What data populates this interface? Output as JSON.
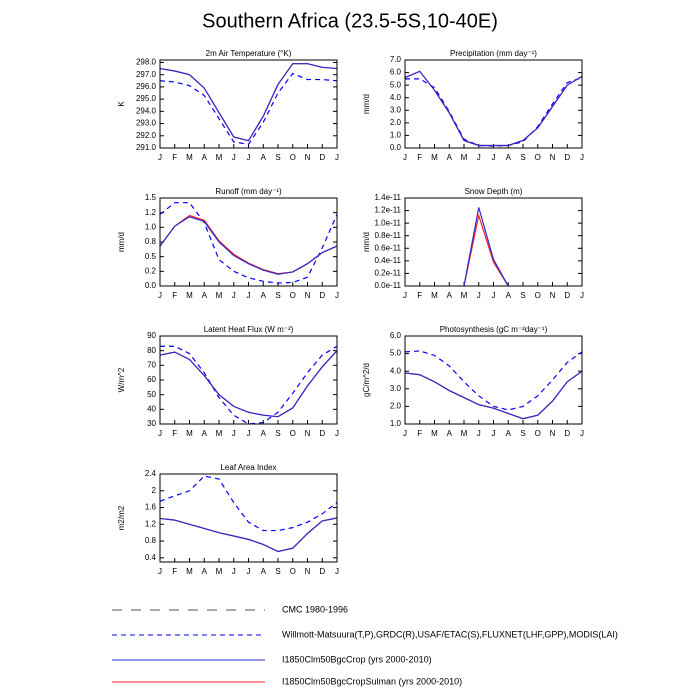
{
  "title": "Southern Africa (23.5-5S,10-40E)",
  "legend": [
    {
      "name": "CMC 1980-1996",
      "color": "#555555",
      "linestyle": "longdash"
    },
    {
      "name": "Willmott-Matsuura(T,P),GRDC(R),USAF/ETAC(S),FLUXNET(LHF,GPP),MODIS(LAI)",
      "color": "#0000ff",
      "linestyle": "dashed"
    },
    {
      "name": "I1850Clm50BgcCrop (yrs 2000-2010)",
      "color": "#2a2ad0",
      "linestyle": "solid"
    },
    {
      "name": "I1850Clm50BgcCropSulman (yrs 2000-2010)",
      "color": "#ff2020",
      "linestyle": "solid"
    }
  ],
  "chart_data": [
    {
      "type": "line",
      "title": "2m Air Temperature (°K)",
      "ylabel": "K",
      "categories": [
        "J",
        "F",
        "M",
        "A",
        "M",
        "J",
        "J",
        "A",
        "S",
        "O",
        "N",
        "D",
        "J"
      ],
      "ylim": [
        291,
        298.2
      ],
      "yticks": [
        {
          "value": 291,
          "label": "291.0"
        },
        {
          "value": 292,
          "label": "292.0"
        },
        {
          "value": 293,
          "label": "293.0"
        },
        {
          "value": 294,
          "label": "294.0"
        },
        {
          "value": 295,
          "label": "295.0"
        },
        {
          "value": 296,
          "label": "296.0"
        },
        {
          "value": 297,
          "label": "297.0"
        },
        {
          "value": 298,
          "label": "298.0"
        }
      ],
      "series": [
        {
          "name": "Willmott-Matsuura(T,P),GRDC(R),USAF/ETAC(S),FLUXNET(LHF,GPP),MODIS(LAI)",
          "values": [
            296.5,
            296.4,
            296.1,
            295.3,
            293.4,
            291.5,
            291.3,
            293.1,
            295.5,
            297.1,
            296.6,
            296.6,
            296.5
          ]
        },
        {
          "name": "I1850Clm50BgcCropSulman (yrs 2000-2010)",
          "values": [
            297.5,
            297.3,
            297.0,
            295.9,
            293.9,
            291.9,
            291.6,
            293.6,
            296.2,
            297.9,
            297.9,
            297.6,
            297.5
          ]
        },
        {
          "name": "I1850Clm50BgcCrop (yrs 2000-2010)",
          "values": [
            297.5,
            297.3,
            297.0,
            295.9,
            293.9,
            291.9,
            291.6,
            293.6,
            296.2,
            297.9,
            297.9,
            297.6,
            297.5
          ]
        }
      ]
    },
    {
      "type": "line",
      "title": "Precipitation (mm day⁻¹)",
      "ylabel": "mm/d",
      "categories": [
        "J",
        "F",
        "M",
        "A",
        "M",
        "J",
        "J",
        "A",
        "S",
        "O",
        "N",
        "D",
        "J"
      ],
      "ylim": [
        0,
        7
      ],
      "yticks": [
        {
          "value": 0,
          "label": "0.0"
        },
        {
          "value": 1,
          "label": "1.0"
        },
        {
          "value": 2,
          "label": "2.0"
        },
        {
          "value": 3,
          "label": "3.0"
        },
        {
          "value": 4,
          "label": "4.0"
        },
        {
          "value": 5,
          "label": "5.0"
        },
        {
          "value": 6,
          "label": "6.0"
        },
        {
          "value": 7,
          "label": "7.0"
        }
      ],
      "series": [
        {
          "name": "Willmott-Matsuura(T,P),GRDC(R),USAF/ETAC(S),FLUXNET(LHF,GPP),MODIS(LAI)",
          "values": [
            5.5,
            5.5,
            4.8,
            2.9,
            0.7,
            0.2,
            0.15,
            0.2,
            0.5,
            1.7,
            3.5,
            5.2,
            5.6
          ]
        },
        {
          "name": "I1850Clm50BgcCropSulman (yrs 2000-2010)",
          "values": [
            5.6,
            6.1,
            4.6,
            2.8,
            0.6,
            0.2,
            0.2,
            0.2,
            0.6,
            1.6,
            3.3,
            5.0,
            5.7
          ]
        },
        {
          "name": "I1850Clm50BgcCrop (yrs 2000-2010)",
          "values": [
            5.6,
            6.1,
            4.6,
            2.8,
            0.6,
            0.2,
            0.2,
            0.2,
            0.6,
            1.6,
            3.3,
            5.0,
            5.7
          ]
        }
      ]
    },
    {
      "type": "line",
      "title": "Runoff (mm day⁻¹)",
      "ylabel": "mm/d",
      "categories": [
        "J",
        "F",
        "M",
        "A",
        "M",
        "J",
        "J",
        "A",
        "S",
        "O",
        "N",
        "D",
        "J"
      ],
      "ylim": [
        0,
        1.5
      ],
      "yticks": [
        {
          "value": 0,
          "label": "0.0"
        },
        {
          "value": 0.25,
          "label": "0.2"
        },
        {
          "value": 0.5,
          "label": "0.5"
        },
        {
          "value": 0.75,
          "label": "0.8"
        },
        {
          "value": 1,
          "label": "1.0"
        },
        {
          "value": 1.25,
          "label": "1.2"
        },
        {
          "value": 1.5,
          "label": "1.5"
        }
      ],
      "series": [
        {
          "name": "Willmott-Matsuura(T,P),GRDC(R),USAF/ETAC(S),FLUXNET(LHF,GPP),MODIS(LAI)",
          "values": [
            1.22,
            1.42,
            1.42,
            1.08,
            0.45,
            0.25,
            0.14,
            0.08,
            0.05,
            0.06,
            0.15,
            0.65,
            1.22
          ]
        },
        {
          "name": "I1850Clm50BgcCropSulman (yrs 2000-2010)",
          "values": [
            0.68,
            1.02,
            1.2,
            1.12,
            0.77,
            0.54,
            0.39,
            0.28,
            0.21,
            0.24,
            0.38,
            0.57,
            0.68
          ]
        },
        {
          "name": "I1850Clm50BgcCrop (yrs 2000-2010)",
          "values": [
            0.68,
            1.02,
            1.18,
            1.1,
            0.75,
            0.52,
            0.38,
            0.27,
            0.2,
            0.24,
            0.38,
            0.57,
            0.68
          ]
        }
      ]
    },
    {
      "type": "line",
      "title": "Snow Depth (m)",
      "ylabel": "mm/d",
      "categories": [
        "J",
        "F",
        "M",
        "A",
        "M",
        "J",
        "J",
        "A",
        "S",
        "O",
        "N",
        "D",
        "J"
      ],
      "ylim": [
        0,
        1.4e-11
      ],
      "yticks": [
        {
          "value": 0,
          "label": "0.0e-11"
        },
        {
          "value": 2e-12,
          "label": "0.2e-11"
        },
        {
          "value": 4e-12,
          "label": "0.4e-11"
        },
        {
          "value": 6e-12,
          "label": "0.6e-11"
        },
        {
          "value": 8e-12,
          "label": "0.8e-11"
        },
        {
          "value": 1e-11,
          "label": "1.0e-11"
        },
        {
          "value": 1.2e-11,
          "label": "1.2e-11"
        },
        {
          "value": 1.4e-11,
          "label": "1.4e-11"
        }
      ],
      "series": [
        {
          "name": "I1850Clm50BgcCropSulman (yrs 2000-2010)",
          "values": [
            null,
            null,
            null,
            null,
            0,
            1.12e-11,
            3.8e-12,
            0,
            null,
            null,
            null,
            null,
            null
          ]
        },
        {
          "name": "I1850Clm50BgcCrop (yrs 2000-2010)",
          "values": [
            null,
            null,
            null,
            null,
            0,
            1.25e-11,
            4.2e-12,
            0,
            null,
            null,
            null,
            null,
            null
          ]
        }
      ]
    },
    {
      "type": "line",
      "title": "Latent Heat Flux (W m⁻²)",
      "ylabel": "W/m^2",
      "categories": [
        "J",
        "F",
        "M",
        "A",
        "M",
        "J",
        "J",
        "A",
        "S",
        "O",
        "N",
        "D",
        "J"
      ],
      "ylim": [
        30,
        90
      ],
      "yticks": [
        30,
        40,
        50,
        60,
        70,
        80,
        90
      ],
      "series": [
        {
          "name": "Willmott-Matsuura(T,P),GRDC(R),USAF/ETAC(S),FLUXNET(LHF,GPP),MODIS(LAI)",
          "values": [
            83,
            83,
            78,
            65,
            48,
            36,
            30,
            31,
            38,
            51,
            65,
            77,
            83
          ]
        },
        {
          "name": "I1850Clm50BgcCropSulman (yrs 2000-2010)",
          "values": [
            77,
            79,
            74,
            63,
            50,
            42,
            38,
            36,
            35,
            41,
            56,
            69,
            80
          ]
        },
        {
          "name": "I1850Clm50BgcCrop (yrs 2000-2010)",
          "values": [
            77,
            79,
            74,
            63,
            50,
            42,
            38,
            36,
            35,
            41,
            56,
            69,
            80
          ]
        }
      ]
    },
    {
      "type": "line",
      "title": "Photosynthesis (gC m⁻²day⁻¹)",
      "ylabel": "gC/m^2/d",
      "categories": [
        "J",
        "F",
        "M",
        "A",
        "M",
        "J",
        "J",
        "A",
        "S",
        "O",
        "N",
        "D",
        "J"
      ],
      "ylim": [
        1,
        6
      ],
      "yticks": [
        {
          "value": 1,
          "label": "1.0"
        },
        {
          "value": 2,
          "label": "2.0"
        },
        {
          "value": 3,
          "label": "3.0"
        },
        {
          "value": 4,
          "label": "4.0"
        },
        {
          "value": 5,
          "label": "5.0"
        },
        {
          "value": 6,
          "label": "6.0"
        }
      ],
      "series": [
        {
          "name": "Willmott-Matsuura(T,P),GRDC(R),USAF/ETAC(S),FLUXNET(LHF,GPP),MODIS(LAI)",
          "values": [
            5.1,
            5.15,
            4.9,
            4.3,
            3.4,
            2.6,
            2.0,
            1.8,
            2.0,
            2.6,
            3.5,
            4.5,
            5.1
          ]
        },
        {
          "name": "I1850Clm50BgcCropSulman (yrs 2000-2010)",
          "values": [
            3.9,
            3.8,
            3.4,
            2.9,
            2.5,
            2.1,
            1.9,
            1.6,
            1.3,
            1.5,
            2.3,
            3.4,
            4.0
          ]
        },
        {
          "name": "I1850Clm50BgcCrop (yrs 2000-2010)",
          "values": [
            3.9,
            3.8,
            3.4,
            2.9,
            2.5,
            2.1,
            1.9,
            1.6,
            1.3,
            1.5,
            2.3,
            3.4,
            4.0
          ]
        }
      ]
    },
    {
      "type": "line",
      "title": "Leaf Area Index",
      "ylabel": "m2/m2",
      "categories": [
        "J",
        "F",
        "M",
        "A",
        "M",
        "J",
        "J",
        "A",
        "S",
        "O",
        "N",
        "D",
        "J"
      ],
      "ylim": [
        0.3,
        2.4
      ],
      "yticks": [
        0.4,
        0.8,
        1.2,
        1.6,
        2.0,
        2.4
      ],
      "series": [
        {
          "name": "Willmott-Matsuura(T,P),GRDC(R),USAF/ETAC(S),FLUXNET(LHF,GPP),MODIS(LAI)",
          "values": [
            1.75,
            1.88,
            2.0,
            2.35,
            2.28,
            1.72,
            1.25,
            1.05,
            1.05,
            1.12,
            1.25,
            1.45,
            1.72
          ]
        },
        {
          "name": "I1850Clm50BgcCropSulman (yrs 2000-2010)",
          "values": [
            1.34,
            1.3,
            1.2,
            1.1,
            1.0,
            0.92,
            0.84,
            0.72,
            0.55,
            0.63,
            0.98,
            1.28,
            1.35
          ]
        },
        {
          "name": "I1850Clm50BgcCrop (yrs 2000-2010)",
          "values": [
            1.34,
            1.3,
            1.2,
            1.1,
            1.0,
            0.92,
            0.84,
            0.72,
            0.55,
            0.63,
            0.98,
            1.28,
            1.35
          ]
        }
      ]
    }
  ]
}
